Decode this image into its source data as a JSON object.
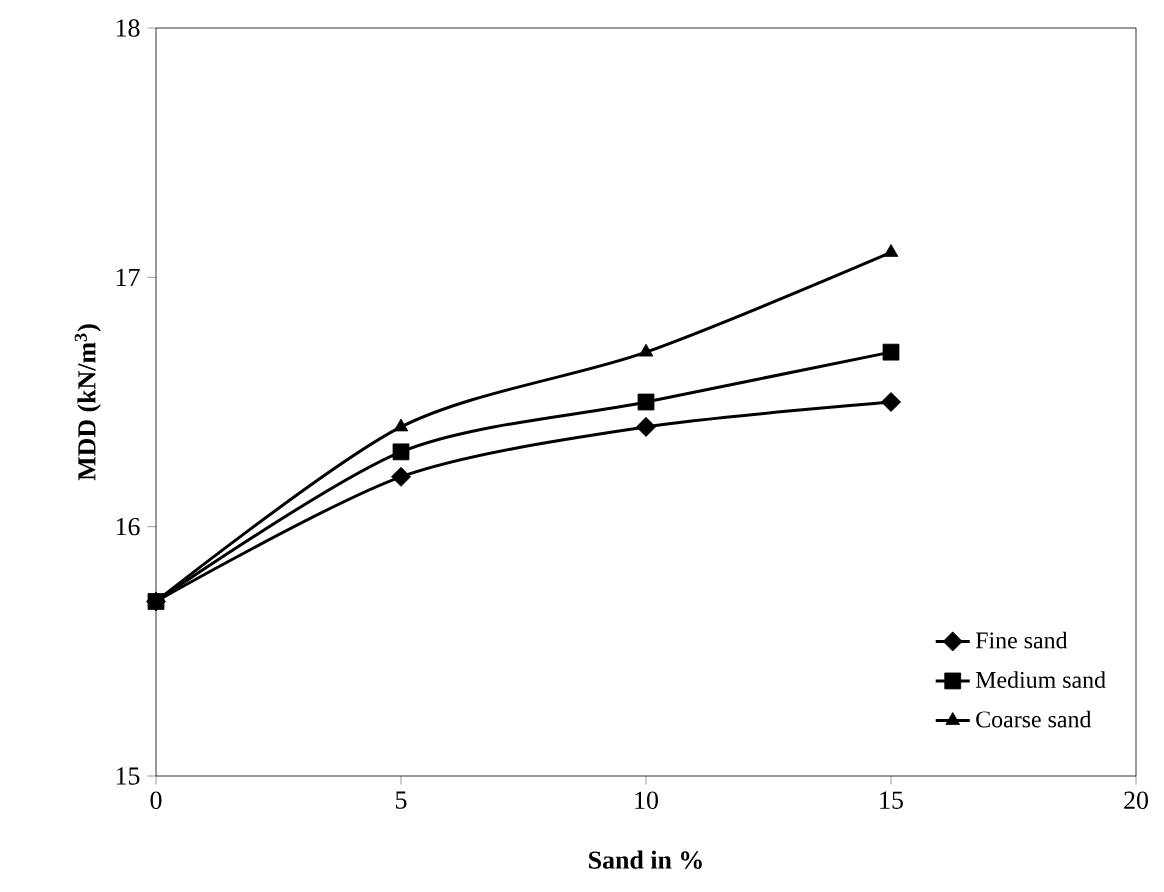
{
  "chart_data": {
    "type": "line",
    "xlabel": "Sand in %",
    "ylabel": "MDD (kN/m$^{3}$)",
    "x": [
      0,
      5,
      10,
      15
    ],
    "series": [
      {
        "name": "Fine sand",
        "color": "#000000",
        "marker": "diamond",
        "values": [
          15.7,
          16.2,
          16.4,
          16.5
        ]
      },
      {
        "name": "Medium sand",
        "color": "#000000",
        "marker": "square",
        "values": [
          15.7,
          16.3,
          16.5,
          16.7
        ]
      },
      {
        "name": "Coarse sand",
        "color": "#000000",
        "marker": "triangle",
        "values": [
          15.7,
          16.4,
          16.7,
          17.1
        ]
      }
    ],
    "xlim": [
      0,
      20
    ],
    "ylim": [
      15,
      18
    ],
    "xticks": [
      0,
      5,
      10,
      15,
      20
    ],
    "yticks": [
      15,
      16,
      17,
      18
    ],
    "grid": false,
    "legend": "bottom right"
  }
}
